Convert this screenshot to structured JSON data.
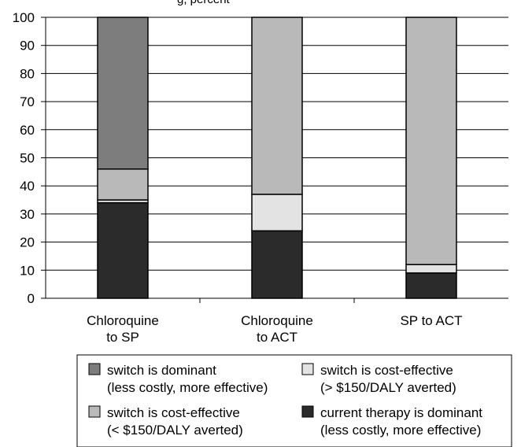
{
  "top_fragment": "g, percent",
  "chart_data": {
    "type": "bar",
    "stacked": true,
    "categories": [
      [
        "Chloroquine",
        "to SP"
      ],
      [
        "Chloroquine",
        "to ACT"
      ],
      [
        "SP to ACT"
      ]
    ],
    "series": [
      {
        "name": "current therapy is dominant",
        "name_line2": "(less costly, more effective)",
        "color": "#2b2b2b",
        "values": [
          34,
          24,
          9
        ]
      },
      {
        "name": "switch is cost-effective",
        "name_line2": "(> $150/DALY averted)",
        "color": "#e3e3e3",
        "values": [
          1,
          13,
          3
        ]
      },
      {
        "name": "switch is cost-effective",
        "name_line2": "(< $150/DALY averted)",
        "color": "#b9b9b9",
        "values": [
          11,
          63,
          88
        ]
      },
      {
        "name": "switch is dominant",
        "name_line2": "(less costly, more effective)",
        "color": "#7d7d7d",
        "values": [
          54,
          0,
          0
        ]
      }
    ],
    "ylim": [
      0,
      100
    ],
    "yticks": [
      0,
      10,
      20,
      30,
      40,
      50,
      60,
      70,
      80,
      90,
      100
    ],
    "grid": true,
    "legend_position": "bottom",
    "legend_order": [
      3,
      1,
      2,
      0
    ]
  }
}
